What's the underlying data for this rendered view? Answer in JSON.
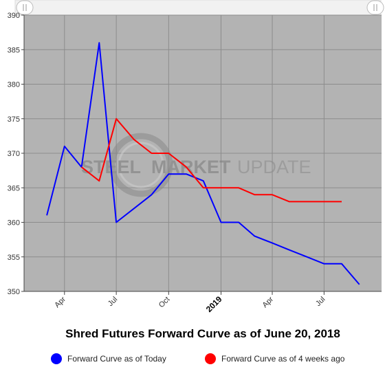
{
  "chart_data": {
    "type": "line",
    "title": "Shred Futures Forward Curve as of June 20, 2018",
    "xlabel": "",
    "ylabel": "",
    "ylim": [
      350,
      390
    ],
    "yticks": [
      350,
      355,
      360,
      365,
      370,
      375,
      380,
      385,
      390
    ],
    "xrange": [
      "2018-01-20",
      "2019-10-10"
    ],
    "xticks": [
      {
        "date": "2018-04-01",
        "label": "Apr",
        "bold": false
      },
      {
        "date": "2018-07-01",
        "label": "Jul",
        "bold": false
      },
      {
        "date": "2018-10-01",
        "label": "Oct",
        "bold": false
      },
      {
        "date": "2019-01-01",
        "label": "2019",
        "bold": true
      },
      {
        "date": "2019-04-01",
        "label": "Apr",
        "bold": false
      },
      {
        "date": "2019-07-01",
        "label": "Jul",
        "bold": false
      }
    ],
    "grid": true,
    "legend_position": "bottom",
    "series": [
      {
        "name": "Forward Curve as of Today",
        "color": "#0000ff",
        "points": [
          {
            "x": "2018-03-01",
            "y": 361
          },
          {
            "x": "2018-04-01",
            "y": 371
          },
          {
            "x": "2018-05-01",
            "y": 368
          },
          {
            "x": "2018-06-01",
            "y": 386
          },
          {
            "x": "2018-07-01",
            "y": 360
          },
          {
            "x": "2018-08-01",
            "y": 362
          },
          {
            "x": "2018-09-01",
            "y": 364
          },
          {
            "x": "2018-10-01",
            "y": 367
          },
          {
            "x": "2018-11-01",
            "y": 367
          },
          {
            "x": "2018-12-01",
            "y": 366
          },
          {
            "x": "2019-01-01",
            "y": 360
          },
          {
            "x": "2019-02-01",
            "y": 360
          },
          {
            "x": "2019-03-01",
            "y": 358
          },
          {
            "x": "2019-04-01",
            "y": 357
          },
          {
            "x": "2019-05-01",
            "y": 356
          },
          {
            "x": "2019-06-01",
            "y": 355
          },
          {
            "x": "2019-07-01",
            "y": 354
          },
          {
            "x": "2019-08-01",
            "y": 354
          },
          {
            "x": "2019-09-01",
            "y": 351
          }
        ]
      },
      {
        "name": "Forward Curve as of 4 weeks ago",
        "color": "#ff0000",
        "points": [
          {
            "x": "2018-05-01",
            "y": 368
          },
          {
            "x": "2018-06-01",
            "y": 366
          },
          {
            "x": "2018-07-01",
            "y": 375
          },
          {
            "x": "2018-08-01",
            "y": 372
          },
          {
            "x": "2018-09-01",
            "y": 370
          },
          {
            "x": "2018-10-01",
            "y": 370
          },
          {
            "x": "2018-11-01",
            "y": 368
          },
          {
            "x": "2018-12-01",
            "y": 365
          },
          {
            "x": "2019-01-01",
            "y": 365
          },
          {
            "x": "2019-02-01",
            "y": 365
          },
          {
            "x": "2019-03-01",
            "y": 364
          },
          {
            "x": "2019-04-01",
            "y": 364
          },
          {
            "x": "2019-05-01",
            "y": 363
          },
          {
            "x": "2019-06-01",
            "y": 363
          },
          {
            "x": "2019-07-01",
            "y": 363
          },
          {
            "x": "2019-08-01",
            "y": 363
          }
        ]
      }
    ],
    "colors": {
      "plot_background": "#b3b3b3",
      "gridline": "#8c8c8c"
    }
  },
  "watermark": {
    "steel": "STEEL",
    "market": "MARKET",
    "update": "UPDATE"
  },
  "navigator": {
    "left_handle_icon": "grip-lines-icon",
    "right_handle_icon": "grip-lines-icon"
  }
}
